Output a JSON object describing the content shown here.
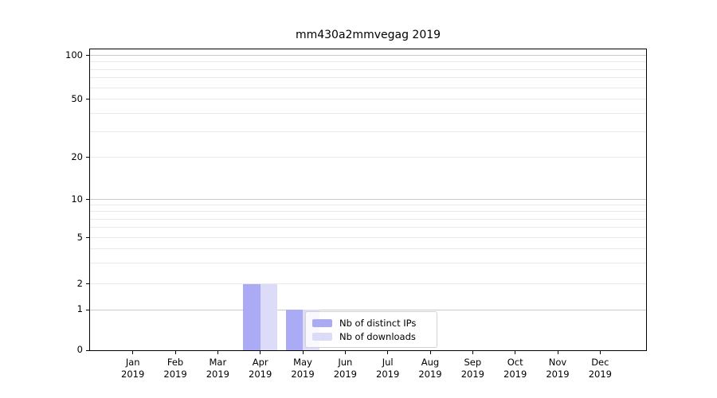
{
  "chart_data": {
    "type": "bar",
    "title": "mm430a2mmvegag 2019",
    "x_tick_labels": [
      [
        "Jan",
        "2019"
      ],
      [
        "Feb",
        "2019"
      ],
      [
        "Mar",
        "2019"
      ],
      [
        "Apr",
        "2019"
      ],
      [
        "May",
        "2019"
      ],
      [
        "Jun",
        "2019"
      ],
      [
        "Jul",
        "2019"
      ],
      [
        "Aug",
        "2019"
      ],
      [
        "Sep",
        "2019"
      ],
      [
        "Oct",
        "2019"
      ],
      [
        "Nov",
        "2019"
      ],
      [
        "Dec",
        "2019"
      ]
    ],
    "series": [
      {
        "name": "Nb of distinct IPs",
        "color": "#aaaaf5",
        "values": [
          0,
          0,
          0,
          2,
          1,
          0,
          0,
          0,
          0,
          0,
          0,
          0
        ]
      },
      {
        "name": "Nb of downloads",
        "color": "#dcdcf9",
        "values": [
          0,
          0,
          0,
          2,
          1,
          0,
          0,
          0,
          0,
          0,
          0,
          0
        ]
      }
    ],
    "y_ticks": [
      0,
      1,
      2,
      5,
      10,
      20,
      50,
      100
    ],
    "ylim": [
      0,
      110
    ],
    "yscale": "symlog",
    "grid": true,
    "legend_position": "inside plot, lower center",
    "colors": {
      "grid_major": "#c9c9c9",
      "grid_minor": "#e9e9e9",
      "spine": "#000000",
      "text": "#000000",
      "background": "#ffffff"
    }
  }
}
